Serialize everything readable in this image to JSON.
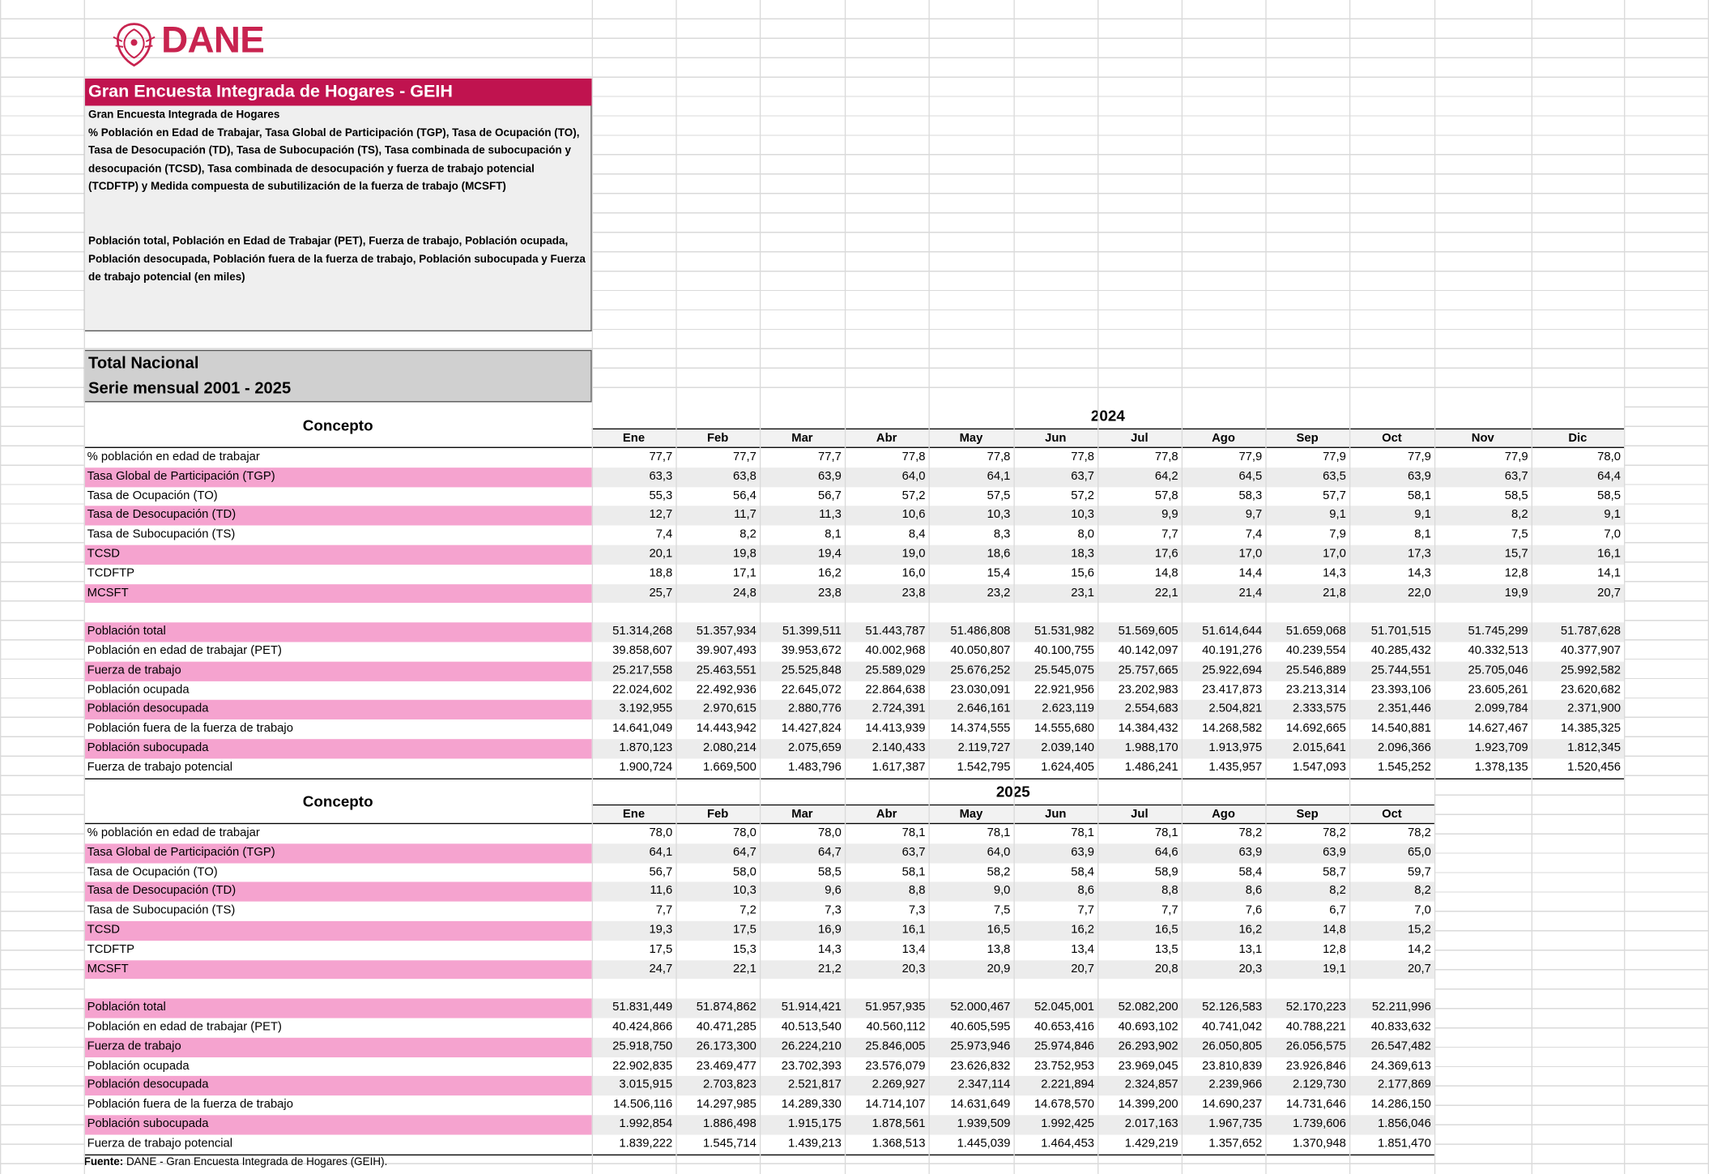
{
  "logo": "DANE",
  "header": {
    "title": "Gran Encuesta Integrada de Hogares - GEIH",
    "subtitle": "Gran Encuesta Integrada de Hogares",
    "description_rates": "% Población en Edad de Trabajar, Tasa Global de Participación (TGP), Tasa de Ocupación (TO), Tasa de Desocupación (TD), Tasa de Subocupación (TS), Tasa combinada de subocupación y desocupación (TCSD), Tasa combinada de desocupación y fuerza de trabajo potencial (TCDFTP) y Medida compuesta de subutilización de la fuerza de trabajo (MCSFT)",
    "description_population": "Población total, Población en Edad de Trabajar (PET), Fuerza de trabajo, Población ocupada, Población desocupada, Población fuera de la fuerza de trabajo, Población subocupada y Fuerza de trabajo potencial (en miles)"
  },
  "section": {
    "line1": "Total Nacional",
    "line2": "Serie mensual 2001 - 2025"
  },
  "tables": [
    {
      "concept_header": "Concepto",
      "year": "2024",
      "months": [
        "Ene",
        "Feb",
        "Mar",
        "Abr",
        "May",
        "Jun",
        "Jul",
        "Ago",
        "Sep",
        "Oct",
        "Nov",
        "Dic"
      ],
      "rate_rows": [
        {
          "label": "% población en edad de trabajar",
          "values": [
            "77,7",
            "77,7",
            "77,7",
            "77,8",
            "77,8",
            "77,8",
            "77,8",
            "77,9",
            "77,9",
            "77,9",
            "77,9",
            "78,0"
          ]
        },
        {
          "label": "Tasa Global de Participación (TGP)",
          "values": [
            "63,3",
            "63,8",
            "63,9",
            "64,0",
            "64,1",
            "63,7",
            "64,2",
            "64,5",
            "63,5",
            "63,9",
            "63,7",
            "64,4"
          ]
        },
        {
          "label": "Tasa de Ocupación (TO)",
          "values": [
            "55,3",
            "56,4",
            "56,7",
            "57,2",
            "57,5",
            "57,2",
            "57,8",
            "58,3",
            "57,7",
            "58,1",
            "58,5",
            "58,5"
          ]
        },
        {
          "label": "Tasa de Desocupación (TD)",
          "values": [
            "12,7",
            "11,7",
            "11,3",
            "10,6",
            "10,3",
            "10,3",
            "9,9",
            "9,7",
            "9,1",
            "9,1",
            "8,2",
            "9,1"
          ]
        },
        {
          "label": "Tasa de Subocupación (TS)",
          "values": [
            "7,4",
            "8,2",
            "8,1",
            "8,4",
            "8,3",
            "8,0",
            "7,7",
            "7,4",
            "7,9",
            "8,1",
            "7,5",
            "7,0"
          ]
        },
        {
          "label": "TCSD",
          "values": [
            "20,1",
            "19,8",
            "19,4",
            "19,0",
            "18,6",
            "18,3",
            "17,6",
            "17,0",
            "17,0",
            "17,3",
            "15,7",
            "16,1"
          ]
        },
        {
          "label": "TCDFTP",
          "values": [
            "18,8",
            "17,1",
            "16,2",
            "16,0",
            "15,4",
            "15,6",
            "14,8",
            "14,4",
            "14,3",
            "14,3",
            "12,8",
            "14,1"
          ]
        },
        {
          "label": "MCSFT",
          "values": [
            "25,7",
            "24,8",
            "23,8",
            "23,8",
            "23,2",
            "23,1",
            "22,1",
            "21,4",
            "21,8",
            "22,0",
            "19,9",
            "20,7"
          ]
        }
      ],
      "population_rows": [
        {
          "label": "Población total",
          "values": [
            "51.314,268",
            "51.357,934",
            "51.399,511",
            "51.443,787",
            "51.486,808",
            "51.531,982",
            "51.569,605",
            "51.614,644",
            "51.659,068",
            "51.701,515",
            "51.745,299",
            "51.787,628"
          ]
        },
        {
          "label": "Población en edad de trabajar (PET)",
          "values": [
            "39.858,607",
            "39.907,493",
            "39.953,672",
            "40.002,968",
            "40.050,807",
            "40.100,755",
            "40.142,097",
            "40.191,276",
            "40.239,554",
            "40.285,432",
            "40.332,513",
            "40.377,907"
          ]
        },
        {
          "label": "Fuerza de trabajo",
          "values": [
            "25.217,558",
            "25.463,551",
            "25.525,848",
            "25.589,029",
            "25.676,252",
            "25.545,075",
            "25.757,665",
            "25.922,694",
            "25.546,889",
            "25.744,551",
            "25.705,046",
            "25.992,582"
          ]
        },
        {
          "label": "Población ocupada",
          "values": [
            "22.024,602",
            "22.492,936",
            "22.645,072",
            "22.864,638",
            "23.030,091",
            "22.921,956",
            "23.202,983",
            "23.417,873",
            "23.213,314",
            "23.393,106",
            "23.605,261",
            "23.620,682"
          ]
        },
        {
          "label": "Población desocupada",
          "values": [
            "3.192,955",
            "2.970,615",
            "2.880,776",
            "2.724,391",
            "2.646,161",
            "2.623,119",
            "2.554,683",
            "2.504,821",
            "2.333,575",
            "2.351,446",
            "2.099,784",
            "2.371,900"
          ]
        },
        {
          "label": "Población fuera de la fuerza de trabajo",
          "values": [
            "14.641,049",
            "14.443,942",
            "14.427,824",
            "14.413,939",
            "14.374,555",
            "14.555,680",
            "14.384,432",
            "14.268,582",
            "14.692,665",
            "14.540,881",
            "14.627,467",
            "14.385,325"
          ]
        },
        {
          "label": "Población subocupada",
          "values": [
            "1.870,123",
            "2.080,214",
            "2.075,659",
            "2.140,433",
            "2.119,727",
            "2.039,140",
            "1.988,170",
            "1.913,975",
            "2.015,641",
            "2.096,366",
            "1.923,709",
            "1.812,345"
          ]
        },
        {
          "label": "Fuerza de trabajo potencial",
          "values": [
            "1.900,724",
            "1.669,500",
            "1.483,796",
            "1.617,387",
            "1.542,795",
            "1.624,405",
            "1.486,241",
            "1.435,957",
            "1.547,093",
            "1.545,252",
            "1.378,135",
            "1.520,456"
          ]
        }
      ]
    },
    {
      "concept_header": "Concepto",
      "year": "2025",
      "months": [
        "Ene",
        "Feb",
        "Mar",
        "Abr",
        "May",
        "Jun",
        "Jul",
        "Ago",
        "Sep",
        "Oct"
      ],
      "rate_rows": [
        {
          "label": "% población en edad de trabajar",
          "values": [
            "78,0",
            "78,0",
            "78,0",
            "78,1",
            "78,1",
            "78,1",
            "78,1",
            "78,2",
            "78,2",
            "78,2"
          ]
        },
        {
          "label": "Tasa Global de Participación (TGP)",
          "values": [
            "64,1",
            "64,7",
            "64,7",
            "63,7",
            "64,0",
            "63,9",
            "64,6",
            "63,9",
            "63,9",
            "65,0"
          ]
        },
        {
          "label": "Tasa de Ocupación (TO)",
          "values": [
            "56,7",
            "58,0",
            "58,5",
            "58,1",
            "58,2",
            "58,4",
            "58,9",
            "58,4",
            "58,7",
            "59,7"
          ]
        },
        {
          "label": "Tasa de Desocupación (TD)",
          "values": [
            "11,6",
            "10,3",
            "9,6",
            "8,8",
            "9,0",
            "8,6",
            "8,8",
            "8,6",
            "8,2",
            "8,2"
          ]
        },
        {
          "label": "Tasa de Subocupación (TS)",
          "values": [
            "7,7",
            "7,2",
            "7,3",
            "7,3",
            "7,5",
            "7,7",
            "7,7",
            "7,6",
            "6,7",
            "7,0"
          ]
        },
        {
          "label": "TCSD",
          "values": [
            "19,3",
            "17,5",
            "16,9",
            "16,1",
            "16,5",
            "16,2",
            "16,5",
            "16,2",
            "14,8",
            "15,2"
          ]
        },
        {
          "label": "TCDFTP",
          "values": [
            "17,5",
            "15,3",
            "14,3",
            "13,4",
            "13,8",
            "13,4",
            "13,5",
            "13,1",
            "12,8",
            "14,2"
          ]
        },
        {
          "label": "MCSFT",
          "values": [
            "24,7",
            "22,1",
            "21,2",
            "20,3",
            "20,9",
            "20,7",
            "20,8",
            "20,3",
            "19,1",
            "20,7"
          ]
        }
      ],
      "population_rows": [
        {
          "label": "Población total",
          "values": [
            "51.831,449",
            "51.874,862",
            "51.914,421",
            "51.957,935",
            "52.000,467",
            "52.045,001",
            "52.082,200",
            "52.126,583",
            "52.170,223",
            "52.211,996"
          ]
        },
        {
          "label": "Población en edad de trabajar (PET)",
          "values": [
            "40.424,866",
            "40.471,285",
            "40.513,540",
            "40.560,112",
            "40.605,595",
            "40.653,416",
            "40.693,102",
            "40.741,042",
            "40.788,221",
            "40.833,632"
          ]
        },
        {
          "label": "Fuerza de trabajo",
          "values": [
            "25.918,750",
            "26.173,300",
            "26.224,210",
            "25.846,005",
            "25.973,946",
            "25.974,846",
            "26.293,902",
            "26.050,805",
            "26.056,575",
            "26.547,482"
          ]
        },
        {
          "label": "Población ocupada",
          "values": [
            "22.902,835",
            "23.469,477",
            "23.702,393",
            "23.576,079",
            "23.626,832",
            "23.752,953",
            "23.969,045",
            "23.810,839",
            "23.926,846",
            "24.369,613"
          ]
        },
        {
          "label": "Población desocupada",
          "values": [
            "3.015,915",
            "2.703,823",
            "2.521,817",
            "2.269,927",
            "2.347,114",
            "2.221,894",
            "2.324,857",
            "2.239,966",
            "2.129,730",
            "2.177,869"
          ]
        },
        {
          "label": "Población fuera de la fuerza de trabajo",
          "values": [
            "14.506,116",
            "14.297,985",
            "14.289,330",
            "14.714,107",
            "14.631,649",
            "14.678,570",
            "14.399,200",
            "14.690,237",
            "14.731,646",
            "14.286,150"
          ]
        },
        {
          "label": "Población subocupada",
          "values": [
            "1.992,854",
            "1.886,498",
            "1.915,175",
            "1.878,561",
            "1.939,509",
            "1.992,425",
            "2.017,163",
            "1.967,735",
            "1.739,606",
            "1.856,046"
          ]
        },
        {
          "label": "Fuerza de trabajo potencial",
          "values": [
            "1.839,222",
            "1.545,714",
            "1.439,213",
            "1.368,513",
            "1.445,039",
            "1.464,453",
            "1.429,219",
            "1.357,652",
            "1.370,948",
            "1.851,470"
          ]
        }
      ]
    }
  ],
  "footer": {
    "label": "Fuente:",
    "text": "DANE - Gran Encuesta Integrada de Hogares (GEIH)."
  }
}
